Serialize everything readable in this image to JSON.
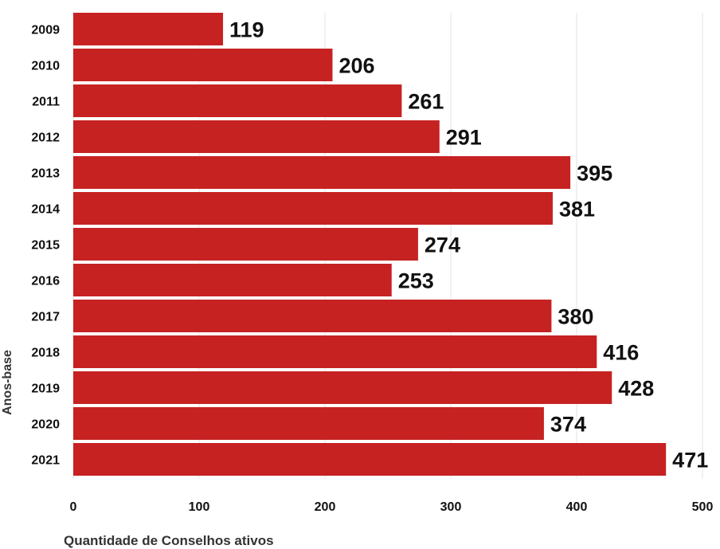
{
  "chart_data": {
    "type": "bar",
    "orientation": "horizontal",
    "categories": [
      "2009",
      "2010",
      "2011",
      "2012",
      "2013",
      "2014",
      "2015",
      "2016",
      "2017",
      "2018",
      "2019",
      "2020",
      "2021"
    ],
    "values": [
      119,
      206,
      261,
      291,
      395,
      381,
      274,
      253,
      380,
      416,
      428,
      374,
      471
    ],
    "xlabel": "Quantidade de Conselhos ativos",
    "ylabel": "Anos-base",
    "xlim": [
      0,
      500
    ],
    "xticks": [
      0,
      100,
      200,
      300,
      400,
      500
    ],
    "bar_color": "#c62222",
    "grid": true
  }
}
